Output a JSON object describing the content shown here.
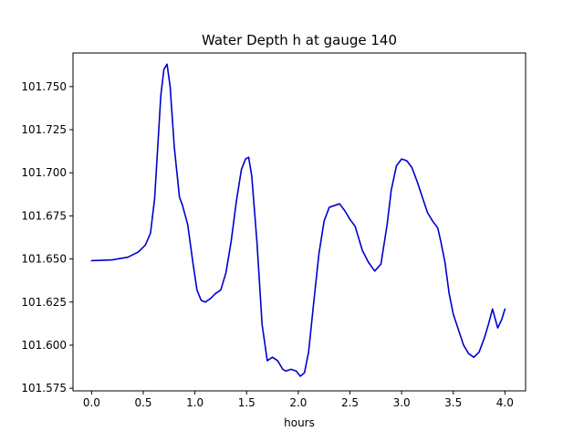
{
  "chart_data": {
    "type": "line",
    "title": "Water Depth h at gauge 140",
    "xlabel": "hours",
    "ylabel": "",
    "xlim": [
      -0.18,
      4.2
    ],
    "ylim": [
      101.5735,
      101.7695
    ],
    "xticks": [
      0.0,
      0.5,
      1.0,
      1.5,
      2.0,
      2.5,
      3.0,
      3.5,
      4.0
    ],
    "xtick_labels": [
      "0.0",
      "0.5",
      "1.0",
      "1.5",
      "2.0",
      "2.5",
      "3.0",
      "3.5",
      "4.0"
    ],
    "yticks": [
      101.575,
      101.6,
      101.625,
      101.65,
      101.675,
      101.7,
      101.725,
      101.75
    ],
    "ytick_labels": [
      "101.575",
      "101.600",
      "101.625",
      "101.650",
      "101.675",
      "101.700",
      "101.725",
      "101.750"
    ],
    "grid": false,
    "colors": {
      "line": "#0000cc",
      "axes": "#000000"
    },
    "series": [
      {
        "x": [
          0.0,
          0.2,
          0.35,
          0.45,
          0.52,
          0.57,
          0.61,
          0.64,
          0.67,
          0.7,
          0.73,
          0.76,
          0.8,
          0.85,
          0.88,
          0.93,
          0.98,
          1.02,
          1.06,
          1.1,
          1.15,
          1.2,
          1.25,
          1.3,
          1.35,
          1.4,
          1.45,
          1.49,
          1.52,
          1.55,
          1.6,
          1.65,
          1.7,
          1.75,
          1.8,
          1.85,
          1.88,
          1.93,
          1.98,
          2.02,
          2.06,
          2.1,
          2.15,
          2.2,
          2.25,
          2.3,
          2.35,
          2.4,
          2.45,
          2.5,
          2.55,
          2.62,
          2.68,
          2.74,
          2.8,
          2.86,
          2.9,
          2.95,
          3.0,
          3.05,
          3.1,
          3.15,
          3.2,
          3.25,
          3.3,
          3.35,
          3.38,
          3.42,
          3.46,
          3.5,
          3.55,
          3.6,
          3.65,
          3.7,
          3.75,
          3.8,
          3.84,
          3.88,
          3.93,
          3.97,
          4.0
        ],
        "y": [
          101.649,
          101.6495,
          101.651,
          101.654,
          101.658,
          101.665,
          101.685,
          101.715,
          101.745,
          101.76,
          101.763,
          101.75,
          101.715,
          101.686,
          101.681,
          101.67,
          101.648,
          101.632,
          101.626,
          101.625,
          101.627,
          101.63,
          101.632,
          101.642,
          101.66,
          101.683,
          101.702,
          101.708,
          101.709,
          101.698,
          101.66,
          101.612,
          101.591,
          101.593,
          101.591,
          101.586,
          101.585,
          101.586,
          101.585,
          101.582,
          101.584,
          101.596,
          101.625,
          101.653,
          101.672,
          101.68,
          101.681,
          101.682,
          101.678,
          101.673,
          101.669,
          101.655,
          101.648,
          101.643,
          101.647,
          101.67,
          101.69,
          101.704,
          101.708,
          101.707,
          101.703,
          101.695,
          101.686,
          101.677,
          101.672,
          101.668,
          101.66,
          101.648,
          101.63,
          101.618,
          101.609,
          101.6,
          101.595,
          101.593,
          101.596,
          101.604,
          101.612,
          101.621,
          101.61,
          101.615,
          101.621
        ]
      }
    ]
  }
}
